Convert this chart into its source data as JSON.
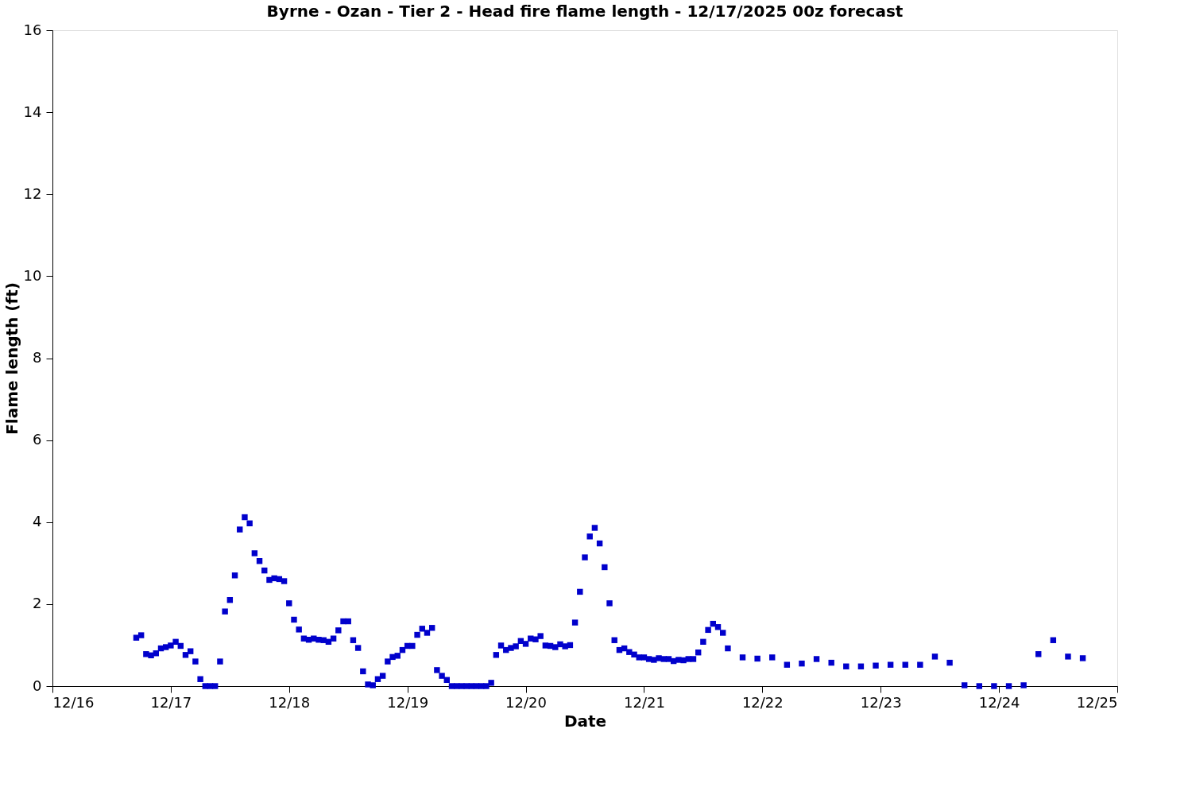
{
  "chart_data": {
    "type": "scatter",
    "title": "Byrne - Ozan - Tier 2 - Head fire flame length - 12/17/2025 00z forecast",
    "xlabel": "Date",
    "ylabel": "Flame length (ft)",
    "x": [
      "2025-12-16T17:00",
      "2025-12-16T18:00",
      "2025-12-16T19:00",
      "2025-12-16T20:00",
      "2025-12-16T21:00",
      "2025-12-16T22:00",
      "2025-12-16T23:00",
      "2025-12-17T00:00",
      "2025-12-17T01:00",
      "2025-12-17T02:00",
      "2025-12-17T03:00",
      "2025-12-17T04:00",
      "2025-12-17T05:00",
      "2025-12-17T06:00",
      "2025-12-17T07:00",
      "2025-12-17T08:00",
      "2025-12-17T09:00",
      "2025-12-17T10:00",
      "2025-12-17T11:00",
      "2025-12-17T12:00",
      "2025-12-17T13:00",
      "2025-12-17T14:00",
      "2025-12-17T15:00",
      "2025-12-17T16:00",
      "2025-12-17T17:00",
      "2025-12-17T18:00",
      "2025-12-17T19:00",
      "2025-12-17T20:00",
      "2025-12-17T21:00",
      "2025-12-17T22:00",
      "2025-12-17T23:00",
      "2025-12-18T00:00",
      "2025-12-18T01:00",
      "2025-12-18T02:00",
      "2025-12-18T03:00",
      "2025-12-18T04:00",
      "2025-12-18T05:00",
      "2025-12-18T06:00",
      "2025-12-18T07:00",
      "2025-12-18T08:00",
      "2025-12-18T09:00",
      "2025-12-18T10:00",
      "2025-12-18T11:00",
      "2025-12-18T12:00",
      "2025-12-18T13:00",
      "2025-12-18T14:00",
      "2025-12-18T15:00",
      "2025-12-18T16:00",
      "2025-12-18T17:00",
      "2025-12-18T18:00",
      "2025-12-18T19:00",
      "2025-12-18T20:00",
      "2025-12-18T21:00",
      "2025-12-18T22:00",
      "2025-12-18T23:00",
      "2025-12-19T00:00",
      "2025-12-19T01:00",
      "2025-12-19T02:00",
      "2025-12-19T03:00",
      "2025-12-19T04:00",
      "2025-12-19T05:00",
      "2025-12-19T06:00",
      "2025-12-19T07:00",
      "2025-12-19T08:00",
      "2025-12-19T09:00",
      "2025-12-19T10:00",
      "2025-12-19T11:00",
      "2025-12-19T12:00",
      "2025-12-19T13:00",
      "2025-12-19T14:00",
      "2025-12-19T15:00",
      "2025-12-19T16:00",
      "2025-12-19T17:00",
      "2025-12-19T18:00",
      "2025-12-19T19:00",
      "2025-12-19T20:00",
      "2025-12-19T21:00",
      "2025-12-19T22:00",
      "2025-12-19T23:00",
      "2025-12-20T00:00",
      "2025-12-20T01:00",
      "2025-12-20T02:00",
      "2025-12-20T03:00",
      "2025-12-20T04:00",
      "2025-12-20T05:00",
      "2025-12-20T06:00",
      "2025-12-20T07:00",
      "2025-12-20T08:00",
      "2025-12-20T09:00",
      "2025-12-20T10:00",
      "2025-12-20T11:00",
      "2025-12-20T12:00",
      "2025-12-20T13:00",
      "2025-12-20T14:00",
      "2025-12-20T15:00",
      "2025-12-20T16:00",
      "2025-12-20T17:00",
      "2025-12-20T18:00",
      "2025-12-20T19:00",
      "2025-12-20T20:00",
      "2025-12-20T21:00",
      "2025-12-20T22:00",
      "2025-12-20T23:00",
      "2025-12-21T00:00",
      "2025-12-21T01:00",
      "2025-12-21T02:00",
      "2025-12-21T03:00",
      "2025-12-21T04:00",
      "2025-12-21T05:00",
      "2025-12-21T06:00",
      "2025-12-21T07:00",
      "2025-12-21T08:00",
      "2025-12-21T09:00",
      "2025-12-21T10:00",
      "2025-12-21T11:00",
      "2025-12-21T12:00",
      "2025-12-21T13:00",
      "2025-12-21T14:00",
      "2025-12-21T15:00",
      "2025-12-21T16:00",
      "2025-12-21T17:00",
      "2025-12-21T20:00",
      "2025-12-21T23:00",
      "2025-12-22T02:00",
      "2025-12-22T05:00",
      "2025-12-22T08:00",
      "2025-12-22T11:00",
      "2025-12-22T14:00",
      "2025-12-22T17:00",
      "2025-12-22T20:00",
      "2025-12-22T23:00",
      "2025-12-23T02:00",
      "2025-12-23T05:00",
      "2025-12-23T08:00",
      "2025-12-23T11:00",
      "2025-12-23T14:00",
      "2025-12-23T17:00",
      "2025-12-23T20:00",
      "2025-12-23T23:00",
      "2025-12-24T02:00",
      "2025-12-24T05:00",
      "2025-12-24T08:00",
      "2025-12-24T11:00",
      "2025-12-24T14:00",
      "2025-12-24T17:00"
    ],
    "series": [
      {
        "color": "#0000cc",
        "values": [
          1.18,
          1.24,
          0.78,
          0.75,
          0.8,
          0.92,
          0.95,
          0.99,
          1.08,
          0.98,
          0.76,
          0.85,
          0.6,
          0.17,
          0,
          0,
          0,
          0.6,
          1.82,
          2.1,
          2.7,
          3.82,
          4.12,
          3.97,
          3.24,
          3.05,
          2.82,
          2.59,
          2.63,
          2.61,
          2.56,
          2.02,
          1.62,
          1.38,
          1.16,
          1.13,
          1.16,
          1.13,
          1.12,
          1.08,
          1.16,
          1.36,
          1.58,
          1.58,
          1.12,
          0.93,
          0.36,
          0.04,
          0.02,
          0.17,
          0.25,
          0.6,
          0.71,
          0.74,
          0.88,
          0.98,
          0.98,
          1.25,
          1.4,
          1.3,
          1.42,
          0.39,
          0.25,
          0.15,
          0,
          0,
          0,
          0,
          0,
          0,
          0,
          0,
          0.08,
          0.76,
          0.99,
          0.88,
          0.93,
          0.97,
          1.1,
          1.03,
          1.16,
          1.14,
          1.22,
          0.99,
          0.98,
          0.95,
          1.02,
          0.97,
          1.0,
          1.55,
          2.3,
          3.14,
          3.65,
          3.86,
          3.48,
          2.9,
          2.02,
          1.12,
          0.88,
          0.92,
          0.83,
          0.77,
          0.7,
          0.7,
          0.66,
          0.64,
          0.68,
          0.66,
          0.66,
          0.61,
          0.64,
          0.63,
          0.66,
          0.66,
          0.82,
          1.08,
          1.37,
          1.52,
          1.44,
          1.3,
          0.92,
          0.7,
          0.67,
          0.7,
          0.52,
          0.55,
          0.66,
          0.57,
          0.48,
          0.48,
          0.5,
          0.52,
          0.52,
          0.52,
          0.72,
          0.57,
          0.02,
          0,
          0,
          0,
          0.02,
          0.78,
          1.12,
          0.72,
          0.68
        ]
      }
    ],
    "marker": "square",
    "grid": false,
    "legend": false,
    "xlim": [
      "2025-12-16",
      "2025-12-25"
    ],
    "xticks": [
      {
        "value": "2025-12-16",
        "label": "12/16"
      },
      {
        "value": "2025-12-17",
        "label": "12/17"
      },
      {
        "value": "2025-12-18",
        "label": "12/18"
      },
      {
        "value": "2025-12-19",
        "label": "12/19"
      },
      {
        "value": "2025-12-20",
        "label": "12/20"
      },
      {
        "value": "2025-12-21",
        "label": "12/21"
      },
      {
        "value": "2025-12-22",
        "label": "12/22"
      },
      {
        "value": "2025-12-23",
        "label": "12/23"
      },
      {
        "value": "2025-12-24",
        "label": "12/24"
      },
      {
        "value": "2025-12-25",
        "label": "12/25"
      }
    ],
    "ylim": [
      0,
      16
    ],
    "yticks": [
      0,
      2,
      4,
      6,
      8,
      10,
      12,
      14,
      16
    ]
  }
}
